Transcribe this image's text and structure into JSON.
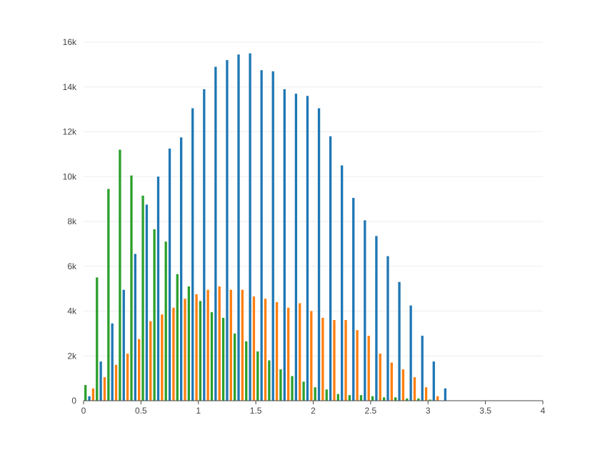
{
  "chart_data": {
    "type": "bar",
    "title": "",
    "xlabel": "",
    "ylabel": "",
    "xlim": [
      0,
      4
    ],
    "ylim": [
      0,
      16000
    ],
    "grid": true,
    "legend": "none",
    "x_ticks": [
      {
        "value": 0,
        "label": "0"
      },
      {
        "value": 0.5,
        "label": "0.5"
      },
      {
        "value": 1,
        "label": "1"
      },
      {
        "value": 1.5,
        "label": "1.5"
      },
      {
        "value": 2,
        "label": "2"
      },
      {
        "value": 2.5,
        "label": "2.5"
      },
      {
        "value": 3,
        "label": "3"
      },
      {
        "value": 3.5,
        "label": "3.5"
      },
      {
        "value": 4,
        "label": "4"
      }
    ],
    "y_ticks": [
      {
        "value": 0,
        "label": "0"
      },
      {
        "value": 2000,
        "label": "2k"
      },
      {
        "value": 4000,
        "label": "4k"
      },
      {
        "value": 6000,
        "label": "6k"
      },
      {
        "value": 8000,
        "label": "8k"
      },
      {
        "value": 10000,
        "label": "10k"
      },
      {
        "value": 12000,
        "label": "12k"
      },
      {
        "value": 14000,
        "label": "14k"
      },
      {
        "value": 16000,
        "label": "16k"
      }
    ],
    "bin_width": 0.1,
    "series": [
      {
        "color": "#2ca02c",
        "bins": [
          {
            "x": 0.0,
            "y": 700
          },
          {
            "x": 0.1,
            "y": 5500
          },
          {
            "x": 0.2,
            "y": 9450
          },
          {
            "x": 0.3,
            "y": 11200
          },
          {
            "x": 0.4,
            "y": 10050
          },
          {
            "x": 0.5,
            "y": 9150
          },
          {
            "x": 0.6,
            "y": 7650
          },
          {
            "x": 0.7,
            "y": 7100
          },
          {
            "x": 0.8,
            "y": 5650
          },
          {
            "x": 0.9,
            "y": 5100
          },
          {
            "x": 1.0,
            "y": 4450
          },
          {
            "x": 1.1,
            "y": 3950
          },
          {
            "x": 1.2,
            "y": 3700
          },
          {
            "x": 1.3,
            "y": 3000
          },
          {
            "x": 1.4,
            "y": 2650
          },
          {
            "x": 1.5,
            "y": 2200
          },
          {
            "x": 1.6,
            "y": 1800
          },
          {
            "x": 1.7,
            "y": 1400
          },
          {
            "x": 1.8,
            "y": 1100
          },
          {
            "x": 1.9,
            "y": 850
          },
          {
            "x": 2.0,
            "y": 600
          },
          {
            "x": 2.1,
            "y": 500
          },
          {
            "x": 2.2,
            "y": 300
          },
          {
            "x": 2.3,
            "y": 250
          },
          {
            "x": 2.4,
            "y": 250
          },
          {
            "x": 2.5,
            "y": 200
          },
          {
            "x": 2.6,
            "y": 150
          },
          {
            "x": 2.7,
            "y": 150
          },
          {
            "x": 2.8,
            "y": 100
          },
          {
            "x": 2.9,
            "y": 100
          },
          {
            "x": 3.0,
            "y": 50
          }
        ]
      },
      {
        "color": "#1f77b4",
        "bins": [
          {
            "x": 0.0,
            "y": 200
          },
          {
            "x": 0.1,
            "y": 1750
          },
          {
            "x": 0.2,
            "y": 3450
          },
          {
            "x": 0.3,
            "y": 4950
          },
          {
            "x": 0.4,
            "y": 6550
          },
          {
            "x": 0.5,
            "y": 8750
          },
          {
            "x": 0.6,
            "y": 10000
          },
          {
            "x": 0.7,
            "y": 11250
          },
          {
            "x": 0.8,
            "y": 11750
          },
          {
            "x": 0.9,
            "y": 13050
          },
          {
            "x": 1.0,
            "y": 13900
          },
          {
            "x": 1.1,
            "y": 14900
          },
          {
            "x": 1.2,
            "y": 15200
          },
          {
            "x": 1.3,
            "y": 15450
          },
          {
            "x": 1.4,
            "y": 15500
          },
          {
            "x": 1.5,
            "y": 14750
          },
          {
            "x": 1.6,
            "y": 14700
          },
          {
            "x": 1.7,
            "y": 13900
          },
          {
            "x": 1.8,
            "y": 13700
          },
          {
            "x": 1.9,
            "y": 13600
          },
          {
            "x": 2.0,
            "y": 13050
          },
          {
            "x": 2.1,
            "y": 11800
          },
          {
            "x": 2.2,
            "y": 10500
          },
          {
            "x": 2.3,
            "y": 9050
          },
          {
            "x": 2.4,
            "y": 8050
          },
          {
            "x": 2.5,
            "y": 7350
          },
          {
            "x": 2.6,
            "y": 6450
          },
          {
            "x": 2.7,
            "y": 5300
          },
          {
            "x": 2.8,
            "y": 4250
          },
          {
            "x": 2.9,
            "y": 2900
          },
          {
            "x": 3.0,
            "y": 1750
          },
          {
            "x": 3.1,
            "y": 550
          }
        ]
      },
      {
        "color": "#ff7f0e",
        "bins": [
          {
            "x": 0.0,
            "y": 550
          },
          {
            "x": 0.1,
            "y": 1050
          },
          {
            "x": 0.2,
            "y": 1600
          },
          {
            "x": 0.3,
            "y": 2100
          },
          {
            "x": 0.4,
            "y": 2750
          },
          {
            "x": 0.5,
            "y": 3550
          },
          {
            "x": 0.6,
            "y": 3850
          },
          {
            "x": 0.7,
            "y": 4150
          },
          {
            "x": 0.8,
            "y": 4550
          },
          {
            "x": 0.9,
            "y": 4750
          },
          {
            "x": 1.0,
            "y": 4950
          },
          {
            "x": 1.1,
            "y": 5100
          },
          {
            "x": 1.2,
            "y": 4950
          },
          {
            "x": 1.3,
            "y": 4950
          },
          {
            "x": 1.4,
            "y": 4650
          },
          {
            "x": 1.5,
            "y": 4550
          },
          {
            "x": 1.6,
            "y": 4400
          },
          {
            "x": 1.7,
            "y": 4150
          },
          {
            "x": 1.8,
            "y": 4350
          },
          {
            "x": 1.9,
            "y": 4000
          },
          {
            "x": 2.0,
            "y": 3700
          },
          {
            "x": 2.1,
            "y": 3600
          },
          {
            "x": 2.2,
            "y": 3600
          },
          {
            "x": 2.3,
            "y": 3150
          },
          {
            "x": 2.4,
            "y": 2900
          },
          {
            "x": 2.5,
            "y": 2100
          },
          {
            "x": 2.6,
            "y": 1700
          },
          {
            "x": 2.7,
            "y": 1400
          },
          {
            "x": 2.8,
            "y": 1050
          },
          {
            "x": 2.9,
            "y": 600
          },
          {
            "x": 3.0,
            "y": 200
          }
        ]
      }
    ],
    "colors": {
      "grid": "#eeeeee",
      "axis_line": "#444444",
      "tick_text": "#444444"
    }
  }
}
